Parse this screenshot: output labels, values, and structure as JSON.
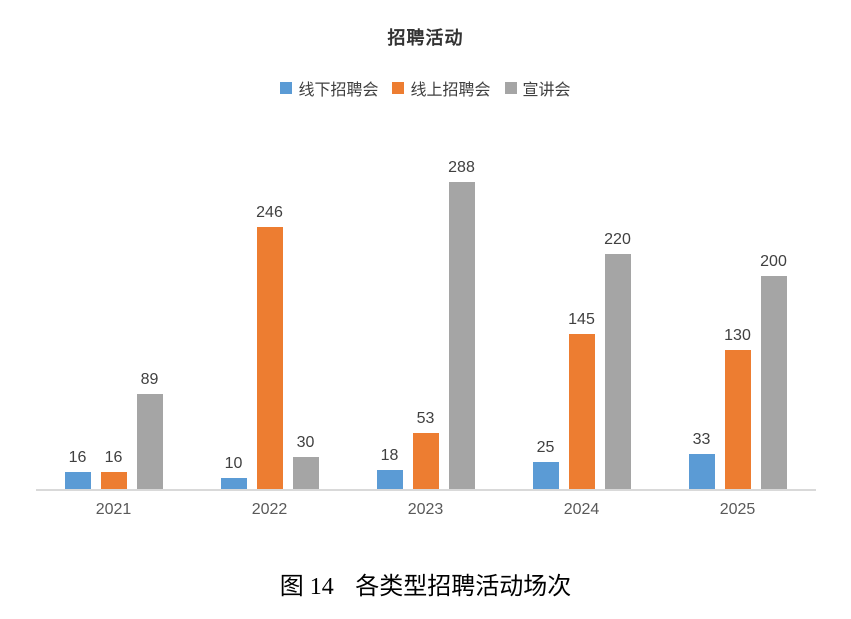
{
  "chart": {
    "title": "招聘活动"
  },
  "chart_data": {
    "type": "bar",
    "title": "招聘活动",
    "categories": [
      "2021",
      "2022",
      "2023",
      "2024",
      "2025"
    ],
    "series": [
      {
        "key": "offline-job-fair",
        "name": "线下招聘会",
        "color": "#5B9BD5",
        "values": [
          16,
          10,
          18,
          25,
          33
        ]
      },
      {
        "key": "online-job-fair",
        "name": "线上招聘会",
        "color": "#ED7D31",
        "values": [
          16,
          246,
          53,
          145,
          130
        ]
      },
      {
        "key": "info-session",
        "name": "宣讲会",
        "color": "#A5A5A5",
        "values": [
          89,
          30,
          288,
          220,
          200
        ]
      }
    ],
    "xlabel": "",
    "ylabel": "",
    "ylim": [
      0,
      320
    ],
    "grid": false,
    "axis_visible": "x-only",
    "axis_color": "#D9D9D9",
    "tick_label_color": "#595959",
    "value_label_color": "#404040",
    "legend_position": "top",
    "data_labels": true
  },
  "caption": {
    "fig_label": "图 14",
    "text": "各类型招聘活动场次"
  }
}
